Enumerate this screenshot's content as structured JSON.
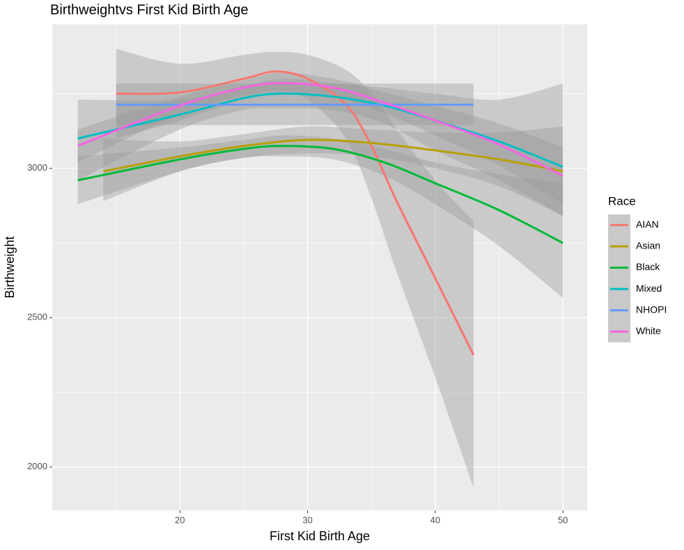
{
  "chart_data": {
    "type": "line",
    "title": "Birthweightvs First Kid Birth Age",
    "x_label": "First Kid Birth Age",
    "y_label": "Birthweight",
    "legend_title": "Race",
    "legend_position": "right",
    "grid": true,
    "xlim": [
      10.0,
      51.9
    ],
    "xticks": [
      20,
      30,
      40,
      50
    ],
    "xminorticks": [
      15,
      25,
      35,
      45
    ],
    "ylim": [
      1855,
      3482
    ],
    "yticks": [
      2000,
      2500,
      3000
    ],
    "yminorticks": [
      2250,
      2750,
      3250
    ],
    "series": [
      {
        "name": "AIAN",
        "color": "#F8766D",
        "x": [
          15,
          20,
          25,
          27.5,
          30,
          33,
          35,
          37,
          40,
          43
        ],
        "values": [
          3250,
          3254,
          3300,
          3324,
          3300,
          3214,
          3075,
          2888,
          2632,
          2375
        ],
        "lower": [
          3100,
          3160,
          3230,
          3260,
          3230,
          3100,
          2900,
          2650,
          2300,
          1930
        ],
        "upper": [
          3400,
          3350,
          3380,
          3390,
          3380,
          3330,
          3250,
          3130,
          2960,
          2823
        ]
      },
      {
        "name": "Asian",
        "color": "#B79F00",
        "x": [
          14,
          20,
          25,
          30,
          35,
          40,
          45,
          50
        ],
        "values": [
          2990,
          3040,
          3075,
          3095,
          3085,
          3060,
          3030,
          2990
        ],
        "lower": [
          2890,
          2990,
          3035,
          3050,
          3040,
          3000,
          2940,
          2840
        ],
        "upper": [
          3100,
          3090,
          3115,
          3140,
          3130,
          3120,
          3120,
          3140
        ]
      },
      {
        "name": "Black",
        "color": "#00BA38",
        "x": [
          12,
          20,
          25,
          28,
          32,
          36,
          40,
          45,
          50
        ],
        "values": [
          2960,
          3030,
          3065,
          3075,
          3065,
          3020,
          2950,
          2860,
          2750
        ],
        "lower": [
          2880,
          2990,
          3035,
          3040,
          3030,
          2975,
          2880,
          2740,
          2566
        ],
        "upper": [
          3040,
          3070,
          3095,
          3110,
          3100,
          3065,
          3020,
          2980,
          2950
        ]
      },
      {
        "name": "Mixed",
        "color": "#00BFC4",
        "x": [
          12,
          20,
          25,
          28,
          32,
          36,
          40,
          45,
          50
        ],
        "values": [
          3100,
          3180,
          3235,
          3250,
          3240,
          3210,
          3160,
          3090,
          3005
        ],
        "lower": [
          2960,
          3130,
          3195,
          3200,
          3195,
          3150,
          3060,
          2960,
          2840
        ],
        "upper": [
          3230,
          3230,
          3275,
          3300,
          3285,
          3270,
          3250,
          3230,
          3284
        ]
      },
      {
        "name": "NHOPI",
        "color": "#619CFF",
        "x": [
          15,
          43
        ],
        "values": [
          3213,
          3213
        ],
        "lower": [
          3145,
          3145
        ],
        "upper": [
          3284,
          3284
        ]
      },
      {
        "name": "White",
        "color": "#F564E3",
        "x": [
          12,
          20,
          25,
          28,
          32,
          36,
          40,
          45,
          50
        ],
        "values": [
          3075,
          3210,
          3270,
          3285,
          3270,
          3220,
          3160,
          3080,
          2975
        ],
        "lower": [
          3020,
          3180,
          3245,
          3250,
          3240,
          3185,
          3110,
          3010,
          2880
        ],
        "upper": [
          3130,
          3240,
          3295,
          3320,
          3300,
          3255,
          3210,
          3150,
          3070
        ]
      }
    ]
  }
}
